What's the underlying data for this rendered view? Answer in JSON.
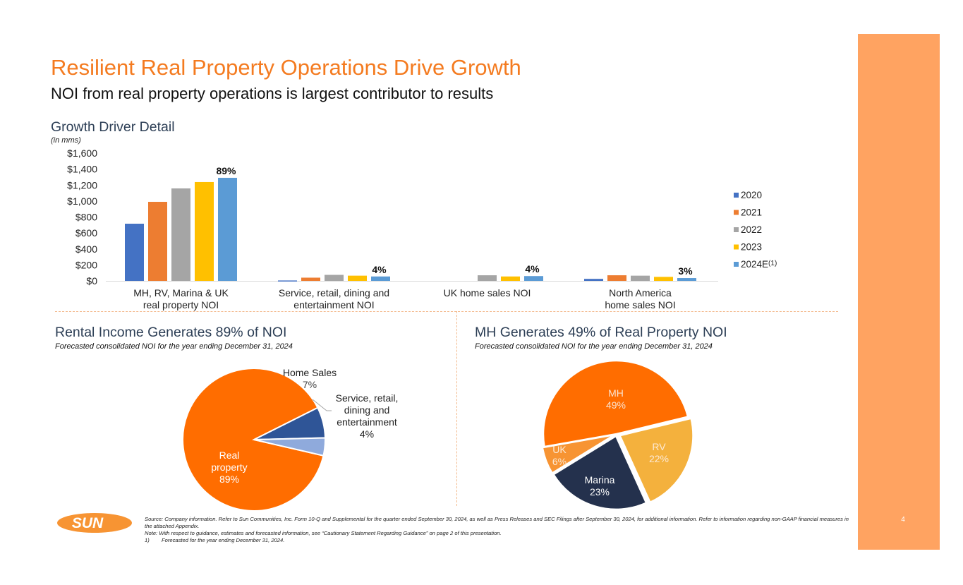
{
  "slide": {
    "title": "Resilient Real Property Operations Drive Growth",
    "subtitle": "NOI from real property operations is largest contributor to results",
    "page_number": "4",
    "logo_text": "SUN",
    "accent_color": "#F47B20",
    "sidebar_color": "#FFA361"
  },
  "chart_data": [
    {
      "type": "bar",
      "title": "Growth Driver Detail",
      "subtitle": "(in mms)",
      "xlabel": "",
      "ylabel": "",
      "ylim": [
        0,
        1600
      ],
      "yticks": [
        0,
        200,
        400,
        600,
        800,
        1000,
        1200,
        1400,
        1600
      ],
      "ytick_labels": [
        "$0",
        "$200",
        "$400",
        "$600",
        "$800",
        "$1,000",
        "$1,200",
        "$1,400",
        "$1,600"
      ],
      "grid": false,
      "legend_position": "right",
      "categories": [
        [
          "MH, RV, Marina & UK",
          "real property NOI"
        ],
        [
          "Service, retail, dining and",
          "entertainment NOI"
        ],
        [
          "UK home sales NOI"
        ],
        [
          "North America",
          "home sales NOI"
        ]
      ],
      "series": [
        {
          "name": "2020",
          "color": "#4472C4",
          "values": [
            716,
            5,
            0,
            25
          ]
        },
        {
          "name": "2021",
          "color": "#ED7D31",
          "values": [
            990,
            40,
            0,
            70
          ]
        },
        {
          "name": "2022",
          "color": "#A5A5A5",
          "values": [
            1158,
            75,
            70,
            65
          ]
        },
        {
          "name": "2023",
          "color": "#FFC000",
          "values": [
            1238,
            65,
            55,
            50
          ]
        },
        {
          "name": "2024E",
          "legend_label": "2024E",
          "legend_superscript": "(1)",
          "color": "#5B9BD5",
          "values": [
            1291,
            55,
            60,
            35
          ]
        }
      ],
      "annotations": [
        "89%",
        "4%",
        "4%",
        "3%"
      ]
    },
    {
      "type": "pie",
      "title": "Rental Income Generates 89% of NOI",
      "subtitle": "Forecasted consolidated NOI for the year ending December 31, 2024",
      "slices": [
        {
          "label": "Real property",
          "label_lines": [
            "Real",
            "property"
          ],
          "value": 89,
          "pct": "89%",
          "color": "#FF6D00"
        },
        {
          "label": "Home Sales",
          "label_lines": [
            "Home Sales"
          ],
          "value": 7,
          "pct": "7%",
          "color": "#2F5597"
        },
        {
          "label": "Service, retail, dining and entertainment",
          "label_lines": [
            "Service, retail,",
            "dining and",
            "entertainment"
          ],
          "value": 4,
          "pct": "4%",
          "color": "#8FAADC"
        }
      ]
    },
    {
      "type": "pie",
      "title": "MH Generates 49% of Real Property NOI",
      "subtitle": "Forecasted consolidated NOI for the year ending December 31, 2024",
      "slices": [
        {
          "label": "MH",
          "value": 49,
          "pct": "49%",
          "color": "#FF6D00"
        },
        {
          "label": "RV",
          "value": 22,
          "pct": "22%",
          "color": "#F4B13D"
        },
        {
          "label": "Marina",
          "value": 23,
          "pct": "23%",
          "color": "#24314D"
        },
        {
          "label": "UK",
          "value": 6,
          "pct": "6%",
          "color": "#F79433"
        }
      ]
    }
  ],
  "footnotes": {
    "source": "Source: Company information. Refer to Sun Communities, Inc. Form 10-Q and Supplemental for the quarter ended September 30, 2024, as well as Press Releases and SEC Filings after September 30, 2024, for additional information. Refer to information regarding non-GAAP financial measures in the attached Appendix.",
    "note": "Note:  With respect to guidance, estimates and forecasted information, see “Cautionary Statement Regarding Guidance” on page 2 of this presentation.",
    "items": [
      {
        "num": "1)",
        "text": "Forecasted for the year ending December 31, 2024."
      }
    ]
  }
}
